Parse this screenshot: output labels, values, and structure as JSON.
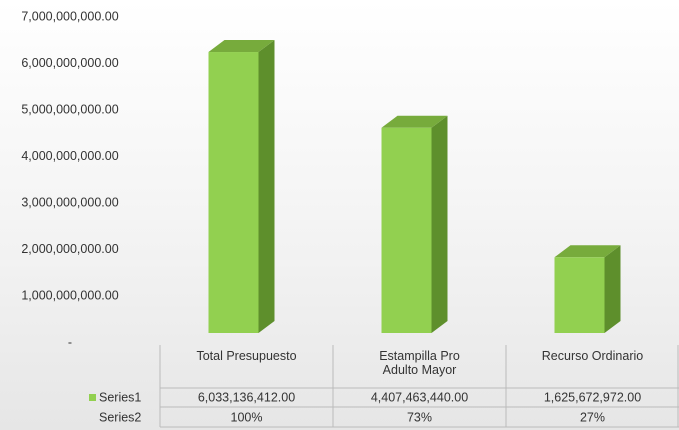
{
  "chart_data": {
    "type": "bar3d",
    "categories": [
      "Total Presupuesto",
      "Estampilla Pro Adulto Mayor",
      "Recurso Ordinario"
    ],
    "series": [
      {
        "name": "Series1",
        "color": "#92d050",
        "values": [
          6033136412,
          4407463440,
          1625672972
        ],
        "value_labels": [
          "6,033,136,412.00",
          "4,407,463,440.00",
          "1,625,672,972.00"
        ]
      },
      {
        "name": "Series2",
        "values": [
          100,
          73,
          27
        ],
        "value_labels": [
          "100%",
          "73%",
          "27%"
        ]
      }
    ],
    "ylim": [
      0,
      7000000000
    ],
    "yticks": [
      {
        "value": 0,
        "label": "-"
      },
      {
        "value": 1000000000,
        "label": "1,000,000,000.00"
      },
      {
        "value": 2000000000,
        "label": "2,000,000,000.00"
      },
      {
        "value": 3000000000,
        "label": "3,000,000,000.00"
      },
      {
        "value": 4000000000,
        "label": "4,000,000,000.00"
      },
      {
        "value": 5000000000,
        "label": "5,000,000,000.00"
      },
      {
        "value": 6000000000,
        "label": "6,000,000,000.00"
      },
      {
        "value": 7000000000,
        "label": "7,000,000,000.00"
      }
    ]
  }
}
